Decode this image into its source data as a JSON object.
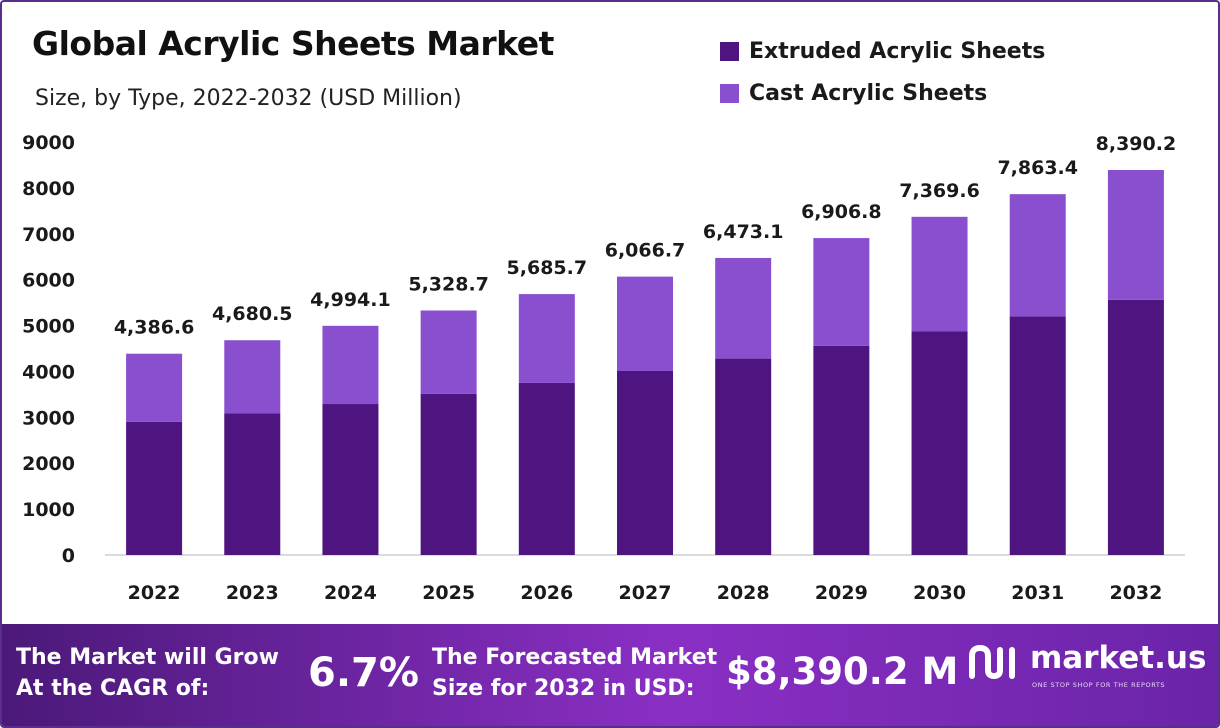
{
  "header": {
    "title": "Global Acrylic Sheets Market",
    "subtitle": "Size, by Type, 2022-2032 (USD Million)"
  },
  "legend": [
    {
      "label": "Extruded Acrylic Sheets",
      "color": "#4e1580"
    },
    {
      "label": "Cast Acrylic Sheets",
      "color": "#8a4fcf"
    }
  ],
  "chart_data": {
    "type": "bar",
    "stacked": true,
    "categories": [
      "2022",
      "2023",
      "2024",
      "2025",
      "2026",
      "2027",
      "2028",
      "2029",
      "2030",
      "2031",
      "2032"
    ],
    "series": [
      {
        "name": "Extruded Acrylic Sheets",
        "color": "#4e1580",
        "values": [
          2900,
          3090,
          3290,
          3510,
          3750,
          4010,
          4280,
          4560,
          4870,
          5200,
          5560
        ]
      },
      {
        "name": "Cast Acrylic Sheets",
        "color": "#8a4fcf",
        "values": [
          1486.6,
          1590.5,
          1704.1,
          1818.7,
          1935.7,
          2056.7,
          2193.1,
          2346.8,
          2499.6,
          2663.4,
          2830.2
        ]
      }
    ],
    "totals": [
      4386.6,
      4680.5,
      4994.1,
      5328.7,
      5685.7,
      6066.7,
      6473.1,
      6906.8,
      7369.6,
      7863.4,
      8390.2
    ],
    "total_labels": [
      "4,386.6",
      "4,680.5",
      "4,994.1",
      "5,328.7",
      "5,685.7",
      "6,066.7",
      "6,473.1",
      "6,906.8",
      "7,369.6",
      "7,863.4",
      "8,390.2"
    ],
    "y_ticks": [
      0,
      1000,
      2000,
      3000,
      4000,
      5000,
      6000,
      7000,
      8000,
      9000
    ],
    "ylim": [
      0,
      9000
    ],
    "grid": false,
    "legend_position": "top-right"
  },
  "footer": {
    "cagr_label_line1": "The Market will Grow",
    "cagr_label_line2": "At the CAGR of:",
    "cagr_value": "6.7%",
    "forecast_label_line1": "The Forecasted Market",
    "forecast_label_line2": "Size for 2032 in USD:",
    "forecast_value": "$8,390.2 M",
    "brand_name": "market.us",
    "brand_tagline": "ONE STOP SHOP FOR THE REPORTS"
  }
}
